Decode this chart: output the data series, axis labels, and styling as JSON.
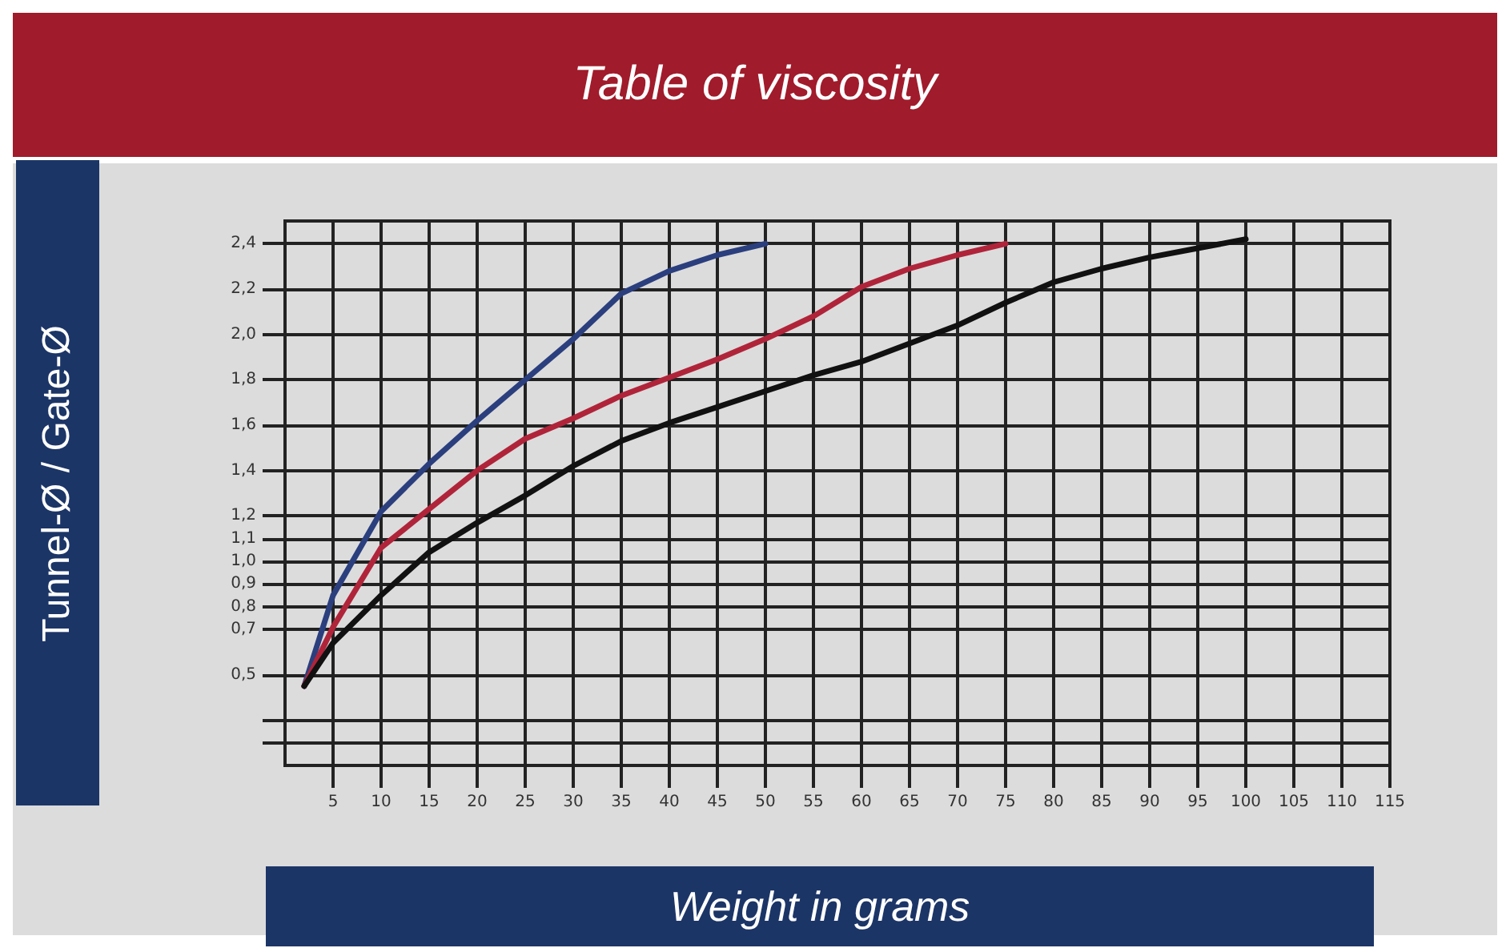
{
  "chart_data": {
    "type": "line",
    "title": "Table of viscosity",
    "xlabel": "Weight in grams",
    "ylabel": "Tunnel-Ø / Gate-Ø",
    "series": [
      {
        "color": "#2b3f7e",
        "x": [
          2,
          5,
          10,
          15,
          20,
          25,
          30,
          35,
          40,
          45,
          50
        ],
        "values": [
          0.45,
          0.85,
          1.22,
          1.43,
          1.62,
          1.8,
          1.98,
          2.18,
          2.28,
          2.35,
          2.4
        ]
      },
      {
        "color": "#b0243a",
        "x": [
          2,
          5,
          10,
          15,
          20,
          25,
          30,
          35,
          40,
          45,
          50,
          55,
          60,
          65,
          70,
          75
        ],
        "values": [
          0.45,
          0.71,
          1.06,
          1.23,
          1.4,
          1.54,
          1.63,
          1.73,
          1.81,
          1.89,
          1.98,
          2.08,
          2.21,
          2.29,
          2.35,
          2.4
        ]
      },
      {
        "color": "#111111",
        "x": [
          2,
          5,
          10,
          15,
          20,
          25,
          30,
          35,
          40,
          45,
          50,
          55,
          60,
          65,
          70,
          75,
          80,
          85,
          90,
          95,
          100
        ],
        "values": [
          0.45,
          0.64,
          0.85,
          1.04,
          1.17,
          1.29,
          1.42,
          1.53,
          1.61,
          1.68,
          1.75,
          1.82,
          1.88,
          1.96,
          2.04,
          2.14,
          2.23,
          2.29,
          2.34,
          2.38,
          2.42
        ]
      }
    ],
    "xlim": [
      0,
      115
    ],
    "xticks": [
      5,
      10,
      15,
      20,
      25,
      30,
      35,
      40,
      45,
      50,
      55,
      60,
      65,
      70,
      75,
      80,
      85,
      90,
      95,
      100,
      105,
      110,
      115
    ],
    "ylim": [
      0.1,
      2.5
    ],
    "yticks": [
      {
        "value": 0.2,
        "label": null
      },
      {
        "value": 0.3,
        "label": null
      },
      {
        "value": 0.5,
        "label": "0,5"
      },
      {
        "value": 0.7,
        "label": "0,7"
      },
      {
        "value": 0.8,
        "label": "0,8"
      },
      {
        "value": 0.9,
        "label": "0,9"
      },
      {
        "value": 1.0,
        "label": "1,0"
      },
      {
        "value": 1.1,
        "label": "1,1"
      },
      {
        "value": 1.2,
        "label": "1,2"
      },
      {
        "value": 1.4,
        "label": "1,4"
      },
      {
        "value": 1.6,
        "label": "1,6"
      },
      {
        "value": 1.8,
        "label": "1,8"
      },
      {
        "value": 2.0,
        "label": "2,0"
      },
      {
        "value": 2.2,
        "label": "2,2"
      },
      {
        "value": 2.4,
        "label": "2,4"
      }
    ],
    "grid": true,
    "marker": "none",
    "line_style": "solid"
  }
}
